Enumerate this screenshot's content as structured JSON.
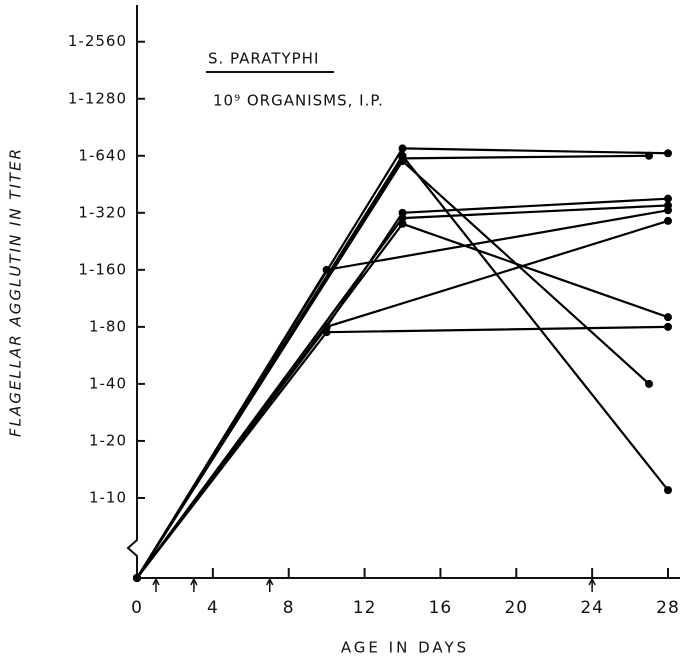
{
  "chart_data": {
    "type": "line",
    "title": "S. PARATYPHI",
    "subtitle": "10⁹ ORGANISMS, I.P.",
    "x_label": "AGE IN DAYS",
    "y_label": "FLAGELLAR AGGLUTIN IN TITER",
    "log_scale_y": true,
    "color": "#000000",
    "xlim": [
      0,
      28
    ],
    "xticks": [
      0,
      4,
      8,
      12,
      16,
      20,
      24,
      28
    ],
    "ylim": [
      6,
      4000
    ],
    "yticks": [
      {
        "value": 2560,
        "label": "1-2560"
      },
      {
        "value": 1280,
        "label": "1-1280"
      },
      {
        "value": 640,
        "label": "1-640"
      },
      {
        "value": 320,
        "label": "1-320"
      },
      {
        "value": 160,
        "label": "1-160"
      },
      {
        "value": 80,
        "label": "1-80"
      },
      {
        "value": 40,
        "label": "1-40"
      },
      {
        "value": 20,
        "label": "1-20"
      },
      {
        "value": 10,
        "label": "1-10"
      }
    ],
    "injection_days": [
      1,
      3,
      7,
      24
    ],
    "series": [
      {
        "x": [
          0,
          14,
          28
        ],
        "values": [
          0,
          700,
          660
        ]
      },
      {
        "x": [
          0,
          14,
          28
        ],
        "values": [
          0,
          640,
          11
        ]
      },
      {
        "x": [
          0,
          14,
          27
        ],
        "values": [
          0,
          620,
          640
        ]
      },
      {
        "x": [
          0,
          14,
          27
        ],
        "values": [
          0,
          600,
          40
        ]
      },
      {
        "x": [
          0,
          10,
          28
        ],
        "values": [
          0,
          160,
          330
        ]
      },
      {
        "x": [
          0,
          10,
          14,
          28
        ],
        "values": [
          0,
          80,
          320,
          380
        ]
      },
      {
        "x": [
          0,
          10,
          28
        ],
        "values": [
          0,
          80,
          290
        ]
      },
      {
        "x": [
          0,
          14,
          28
        ],
        "values": [
          0,
          300,
          350
        ]
      },
      {
        "x": [
          0,
          14,
          28
        ],
        "values": [
          0,
          280,
          90
        ]
      },
      {
        "x": [
          0,
          10,
          28
        ],
        "values": [
          0,
          75,
          80
        ]
      }
    ]
  }
}
